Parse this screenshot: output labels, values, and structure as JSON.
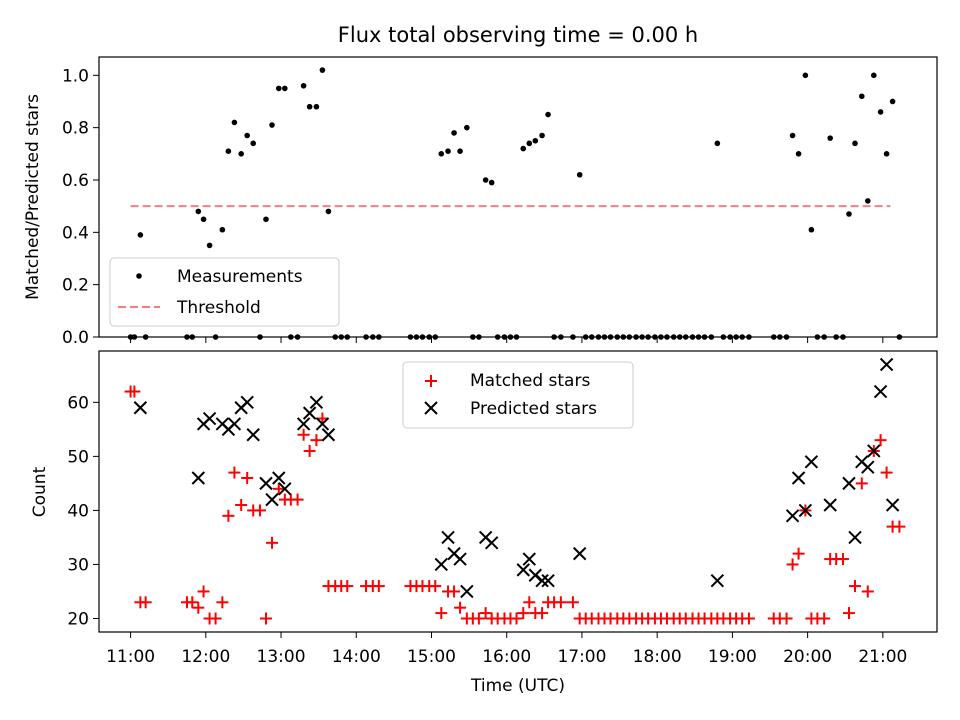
{
  "chart_data": [
    {
      "type": "scatter",
      "title": "Flux total observing time = 0.00 h",
      "ylabel": "Matched/Predicted stars",
      "xlabel": "",
      "xlim": [
        10.58,
        21.72
      ],
      "ylim": [
        0,
        1.07
      ],
      "y_ticks": [
        0.0,
        0.2,
        0.4,
        0.6,
        0.8,
        1.0
      ],
      "y_tick_labels": [
        "0.0",
        "0.2",
        "0.4",
        "0.6",
        "0.8",
        "1.0"
      ],
      "legend_position": "lower-left",
      "threshold": {
        "name": "Threshold",
        "value": 0.5,
        "x_range": [
          11.0,
          21.1
        ],
        "color": "#f08080"
      },
      "series": [
        {
          "name": "Measurements",
          "marker": "dot",
          "color": "#000000",
          "points": [
            [
              11.0,
              0
            ],
            [
              11.05,
              0
            ],
            [
              11.13,
              0.39
            ],
            [
              11.2,
              0
            ],
            [
              11.75,
              0
            ],
            [
              11.82,
              0
            ],
            [
              11.9,
              0.48
            ],
            [
              11.97,
              0.45
            ],
            [
              12.05,
              0.35
            ],
            [
              12.13,
              0
            ],
            [
              12.22,
              0.41
            ],
            [
              12.3,
              0.71
            ],
            [
              12.38,
              0.82
            ],
            [
              12.47,
              0.7
            ],
            [
              12.55,
              0.77
            ],
            [
              12.63,
              0.74
            ],
            [
              12.72,
              0
            ],
            [
              12.8,
              0.45
            ],
            [
              12.88,
              0.81
            ],
            [
              12.97,
              0.95
            ],
            [
              13.05,
              0.95
            ],
            [
              13.13,
              0
            ],
            [
              13.22,
              0
            ],
            [
              13.3,
              0.96
            ],
            [
              13.38,
              0.88
            ],
            [
              13.47,
              0.88
            ],
            [
              13.55,
              1.02
            ],
            [
              13.63,
              0.48
            ],
            [
              13.72,
              0
            ],
            [
              13.8,
              0
            ],
            [
              13.88,
              0
            ],
            [
              14.13,
              0
            ],
            [
              14.22,
              0
            ],
            [
              14.3,
              0
            ],
            [
              14.72,
              0
            ],
            [
              14.8,
              0
            ],
            [
              14.88,
              0
            ],
            [
              14.97,
              0
            ],
            [
              15.05,
              0
            ],
            [
              15.13,
              0.7
            ],
            [
              15.22,
              0.71
            ],
            [
              15.3,
              0.78
            ],
            [
              15.38,
              0.71
            ],
            [
              15.47,
              0.8
            ],
            [
              15.55,
              0
            ],
            [
              15.63,
              0
            ],
            [
              15.72,
              0.6
            ],
            [
              15.8,
              0.59
            ],
            [
              15.88,
              0
            ],
            [
              15.97,
              0
            ],
            [
              16.05,
              0
            ],
            [
              16.13,
              0
            ],
            [
              16.22,
              0.72
            ],
            [
              16.3,
              0.74
            ],
            [
              16.38,
              0.75
            ],
            [
              16.47,
              0.77
            ],
            [
              16.55,
              0.85
            ],
            [
              16.63,
              0
            ],
            [
              16.72,
              0
            ],
            [
              16.88,
              0
            ],
            [
              16.97,
              0.62
            ],
            [
              17.05,
              0
            ],
            [
              17.13,
              0
            ],
            [
              17.22,
              0
            ],
            [
              17.3,
              0
            ],
            [
              17.38,
              0
            ],
            [
              17.47,
              0
            ],
            [
              17.55,
              0
            ],
            [
              17.63,
              0
            ],
            [
              17.72,
              0
            ],
            [
              17.8,
              0
            ],
            [
              17.88,
              0
            ],
            [
              17.97,
              0
            ],
            [
              18.05,
              0
            ],
            [
              18.13,
              0
            ],
            [
              18.22,
              0
            ],
            [
              18.3,
              0
            ],
            [
              18.38,
              0
            ],
            [
              18.47,
              0
            ],
            [
              18.55,
              0
            ],
            [
              18.63,
              0
            ],
            [
              18.72,
              0
            ],
            [
              18.8,
              0.74
            ],
            [
              18.88,
              0
            ],
            [
              18.97,
              0
            ],
            [
              19.05,
              0
            ],
            [
              19.13,
              0
            ],
            [
              19.22,
              0
            ],
            [
              19.55,
              0
            ],
            [
              19.63,
              0
            ],
            [
              19.72,
              0
            ],
            [
              19.8,
              0.77
            ],
            [
              19.88,
              0.7
            ],
            [
              19.97,
              1.0
            ],
            [
              20.05,
              0.41
            ],
            [
              20.13,
              0
            ],
            [
              20.22,
              0
            ],
            [
              20.3,
              0.76
            ],
            [
              20.38,
              0
            ],
            [
              20.47,
              0
            ],
            [
              20.55,
              0.47
            ],
            [
              20.63,
              0.74
            ],
            [
              20.72,
              0.92
            ],
            [
              20.8,
              0.52
            ],
            [
              20.88,
              1.0
            ],
            [
              20.97,
              0.86
            ],
            [
              21.05,
              0.7
            ],
            [
              21.13,
              0.9
            ],
            [
              21.22,
              0
            ]
          ]
        }
      ]
    },
    {
      "type": "scatter",
      "title": "",
      "ylabel": "Count",
      "xlabel": "Time (UTC)",
      "xlim": [
        10.58,
        21.72
      ],
      "ylim": [
        17.5,
        69.5
      ],
      "x_ticks": [
        11,
        12,
        13,
        14,
        15,
        16,
        17,
        18,
        19,
        20,
        21
      ],
      "x_tick_labels": [
        "11:00",
        "12:00",
        "13:00",
        "14:00",
        "15:00",
        "16:00",
        "17:00",
        "18:00",
        "19:00",
        "20:00",
        "21:00"
      ],
      "y_ticks": [
        20,
        30,
        40,
        50,
        60
      ],
      "y_tick_labels": [
        "20",
        "30",
        "40",
        "50",
        "60"
      ],
      "legend_position": "upper-center",
      "series": [
        {
          "name": "Matched stars",
          "marker": "plus",
          "color": "#ff0000",
          "points": [
            [
              11.0,
              62
            ],
            [
              11.05,
              62
            ],
            [
              11.13,
              23
            ],
            [
              11.2,
              23
            ],
            [
              11.75,
              23
            ],
            [
              11.82,
              23
            ],
            [
              11.9,
              22
            ],
            [
              11.97,
              25
            ],
            [
              12.05,
              20
            ],
            [
              12.13,
              20
            ],
            [
              12.22,
              23
            ],
            [
              12.3,
              39
            ],
            [
              12.38,
              47
            ],
            [
              12.47,
              41
            ],
            [
              12.55,
              46
            ],
            [
              12.63,
              40
            ],
            [
              12.72,
              40
            ],
            [
              12.8,
              20
            ],
            [
              12.88,
              34
            ],
            [
              12.97,
              44
            ],
            [
              13.05,
              42
            ],
            [
              13.13,
              42
            ],
            [
              13.22,
              42
            ],
            [
              13.3,
              54
            ],
            [
              13.38,
              51
            ],
            [
              13.47,
              53
            ],
            [
              13.55,
              57
            ],
            [
              13.63,
              26
            ],
            [
              13.72,
              26
            ],
            [
              13.8,
              26
            ],
            [
              13.88,
              26
            ],
            [
              14.13,
              26
            ],
            [
              14.22,
              26
            ],
            [
              14.3,
              26
            ],
            [
              14.72,
              26
            ],
            [
              14.8,
              26
            ],
            [
              14.88,
              26
            ],
            [
              14.97,
              26
            ],
            [
              15.05,
              26
            ],
            [
              15.13,
              21
            ],
            [
              15.22,
              25
            ],
            [
              15.3,
              25
            ],
            [
              15.38,
              22
            ],
            [
              15.47,
              20
            ],
            [
              15.55,
              20
            ],
            [
              15.63,
              20
            ],
            [
              15.72,
              21
            ],
            [
              15.8,
              20
            ],
            [
              15.88,
              20
            ],
            [
              15.97,
              20
            ],
            [
              16.05,
              20
            ],
            [
              16.13,
              20
            ],
            [
              16.22,
              21
            ],
            [
              16.3,
              23
            ],
            [
              16.38,
              21
            ],
            [
              16.47,
              21
            ],
            [
              16.55,
              23
            ],
            [
              16.63,
              23
            ],
            [
              16.72,
              23
            ],
            [
              16.88,
              23
            ],
            [
              16.97,
              20
            ],
            [
              17.05,
              20
            ],
            [
              17.13,
              20
            ],
            [
              17.22,
              20
            ],
            [
              17.3,
              20
            ],
            [
              17.38,
              20
            ],
            [
              17.47,
              20
            ],
            [
              17.55,
              20
            ],
            [
              17.63,
              20
            ],
            [
              17.72,
              20
            ],
            [
              17.8,
              20
            ],
            [
              17.88,
              20
            ],
            [
              17.97,
              20
            ],
            [
              18.05,
              20
            ],
            [
              18.13,
              20
            ],
            [
              18.22,
              20
            ],
            [
              18.3,
              20
            ],
            [
              18.38,
              20
            ],
            [
              18.47,
              20
            ],
            [
              18.55,
              20
            ],
            [
              18.63,
              20
            ],
            [
              18.72,
              20
            ],
            [
              18.8,
              20
            ],
            [
              18.88,
              20
            ],
            [
              18.97,
              20
            ],
            [
              19.05,
              20
            ],
            [
              19.13,
              20
            ],
            [
              19.22,
              20
            ],
            [
              19.55,
              20
            ],
            [
              19.63,
              20
            ],
            [
              19.72,
              20
            ],
            [
              19.8,
              30
            ],
            [
              19.88,
              32
            ],
            [
              19.97,
              40
            ],
            [
              20.05,
              20
            ],
            [
              20.13,
              20
            ],
            [
              20.22,
              20
            ],
            [
              20.3,
              31
            ],
            [
              20.38,
              31
            ],
            [
              20.47,
              31
            ],
            [
              20.55,
              21
            ],
            [
              20.63,
              26
            ],
            [
              20.72,
              45
            ],
            [
              20.8,
              25
            ],
            [
              20.88,
              51
            ],
            [
              20.97,
              53
            ],
            [
              21.05,
              47
            ],
            [
              21.13,
              37
            ],
            [
              21.22,
              37
            ]
          ]
        },
        {
          "name": "Predicted stars",
          "marker": "x",
          "color": "#000000",
          "points": [
            [
              11.13,
              59
            ],
            [
              11.9,
              46
            ],
            [
              11.97,
              56
            ],
            [
              12.05,
              57
            ],
            [
              12.22,
              56
            ],
            [
              12.3,
              55
            ],
            [
              12.38,
              56
            ],
            [
              12.47,
              59
            ],
            [
              12.55,
              60
            ],
            [
              12.63,
              54
            ],
            [
              12.8,
              45
            ],
            [
              12.88,
              42
            ],
            [
              12.97,
              46
            ],
            [
              13.05,
              44
            ],
            [
              13.3,
              56
            ],
            [
              13.38,
              58
            ],
            [
              13.47,
              60
            ],
            [
              13.55,
              56
            ],
            [
              13.63,
              54
            ],
            [
              15.13,
              30
            ],
            [
              15.22,
              35
            ],
            [
              15.3,
              32
            ],
            [
              15.38,
              31
            ],
            [
              15.47,
              25
            ],
            [
              15.72,
              35
            ],
            [
              15.8,
              34
            ],
            [
              16.22,
              29
            ],
            [
              16.3,
              31
            ],
            [
              16.38,
              28
            ],
            [
              16.47,
              27
            ],
            [
              16.55,
              27
            ],
            [
              16.97,
              32
            ],
            [
              18.8,
              27
            ],
            [
              19.8,
              39
            ],
            [
              19.88,
              46
            ],
            [
              19.97,
              40
            ],
            [
              20.05,
              49
            ],
            [
              20.3,
              41
            ],
            [
              20.55,
              45
            ],
            [
              20.63,
              35
            ],
            [
              20.72,
              49
            ],
            [
              20.8,
              48
            ],
            [
              20.88,
              51
            ],
            [
              20.97,
              62
            ],
            [
              21.05,
              67
            ],
            [
              21.13,
              41
            ]
          ]
        }
      ]
    }
  ]
}
